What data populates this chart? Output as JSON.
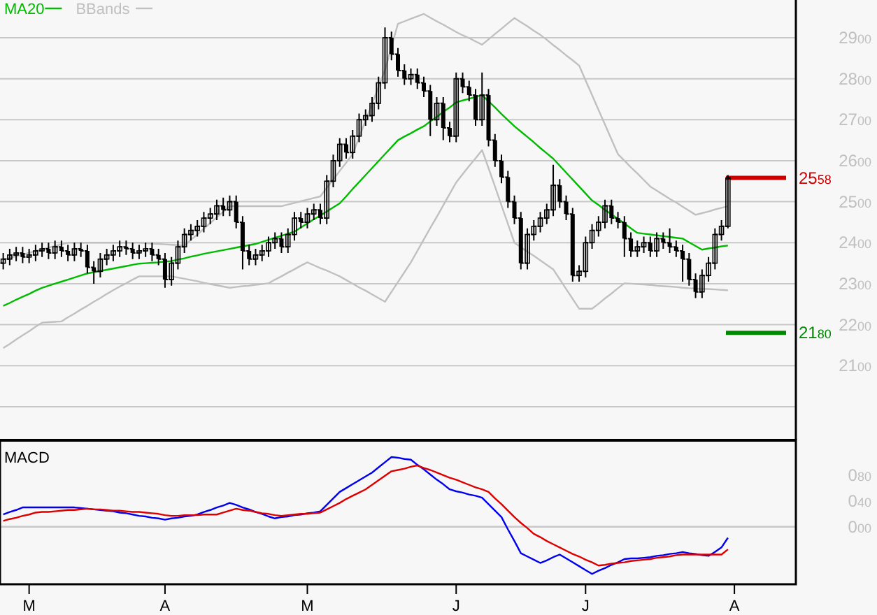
{
  "chart_data": [
    {
      "type": "candlestick",
      "color": "#000000",
      "grid": "y",
      "legend": "top left",
      "tick_labels": "y",
      "ylim": [
        1918,
        2992
      ],
      "yticks": [
        {
          "value": 2000,
          "label": null
        },
        2100,
        2200,
        2300,
        2400,
        2500,
        2600,
        2700,
        2800,
        2900
      ],
      "categories": [
        null,
        null,
        null,
        null,
        null,
        null,
        null,
        null,
        null,
        null,
        null,
        null,
        null,
        null,
        null,
        null,
        null,
        null,
        null,
        null,
        null,
        null,
        null,
        null,
        null,
        null,
        null,
        null,
        null,
        null,
        null,
        null,
        null,
        null,
        null,
        null,
        null,
        null,
        null,
        null,
        null,
        null,
        null,
        null,
        null,
        null,
        null,
        null,
        null,
        null,
        null,
        null,
        null,
        null,
        null,
        null,
        null,
        null,
        null,
        null,
        null,
        null,
        null,
        null,
        null,
        null,
        null,
        null,
        null,
        null,
        null,
        null,
        null,
        null,
        null,
        null,
        null,
        null,
        null,
        null,
        null,
        null,
        null,
        null,
        null,
        null,
        null,
        null,
        null,
        null,
        null,
        null,
        null,
        null,
        null,
        null,
        null,
        null,
        null,
        null,
        null,
        null,
        null,
        null,
        null,
        null,
        null,
        null,
        null,
        null,
        null,
        null,
        null,
        null,
        null,
        null,
        null,
        null,
        null,
        null,
        null,
        null,
        null
      ],
      "ohlc": [
        [
          2350,
          2375,
          2335,
          2360
        ],
        [
          2360,
          2385,
          2345,
          2370
        ],
        [
          2370,
          2390,
          2355,
          2375
        ],
        [
          2375,
          2390,
          2350,
          2365
        ],
        [
          2365,
          2385,
          2350,
          2370
        ],
        [
          2370,
          2395,
          2355,
          2380
        ],
        [
          2380,
          2400,
          2365,
          2385
        ],
        [
          2385,
          2400,
          2360,
          2375
        ],
        [
          2375,
          2405,
          2360,
          2390
        ],
        [
          2390,
          2405,
          2365,
          2380
        ],
        [
          2380,
          2395,
          2355,
          2370
        ],
        [
          2370,
          2400,
          2355,
          2385
        ],
        [
          2385,
          2400,
          2365,
          2380
        ],
        [
          2380,
          2395,
          2325,
          2340
        ],
        [
          2340,
          2355,
          2300,
          2330
        ],
        [
          2330,
          2375,
          2315,
          2360
        ],
        [
          2360,
          2385,
          2345,
          2370
        ],
        [
          2370,
          2395,
          2355,
          2380
        ],
        [
          2380,
          2405,
          2365,
          2390
        ],
        [
          2390,
          2405,
          2370,
          2385
        ],
        [
          2385,
          2400,
          2360,
          2375
        ],
        [
          2375,
          2395,
          2360,
          2380
        ],
        [
          2380,
          2400,
          2365,
          2385
        ],
        [
          2385,
          2400,
          2355,
          2370
        ],
        [
          2370,
          2385,
          2345,
          2360
        ],
        [
          2360,
          2375,
          2290,
          2310
        ],
        [
          2310,
          2365,
          2295,
          2350
        ],
        [
          2350,
          2405,
          2335,
          2390
        ],
        [
          2390,
          2435,
          2375,
          2420
        ],
        [
          2420,
          2445,
          2405,
          2430
        ],
        [
          2430,
          2455,
          2415,
          2440
        ],
        [
          2440,
          2475,
          2425,
          2460
        ],
        [
          2460,
          2485,
          2445,
          2470
        ],
        [
          2470,
          2505,
          2455,
          2490
        ],
        [
          2490,
          2510,
          2465,
          2480
        ],
        [
          2480,
          2515,
          2465,
          2500
        ],
        [
          2500,
          2515,
          2435,
          2450
        ],
        [
          2450,
          2465,
          2335,
          2380
        ],
        [
          2380,
          2395,
          2345,
          2360
        ],
        [
          2360,
          2385,
          2345,
          2370
        ],
        [
          2370,
          2395,
          2355,
          2380
        ],
        [
          2380,
          2415,
          2365,
          2400
        ],
        [
          2400,
          2425,
          2385,
          2410
        ],
        [
          2410,
          2425,
          2375,
          2390
        ],
        [
          2390,
          2435,
          2375,
          2420
        ],
        [
          2420,
          2475,
          2405,
          2460
        ],
        [
          2460,
          2475,
          2435,
          2450
        ],
        [
          2450,
          2485,
          2435,
          2470
        ],
        [
          2470,
          2495,
          2455,
          2480
        ],
        [
          2480,
          2495,
          2445,
          2460
        ],
        [
          2460,
          2565,
          2445,
          2550
        ],
        [
          2550,
          2615,
          2535,
          2600
        ],
        [
          2600,
          2655,
          2585,
          2640
        ],
        [
          2640,
          2655,
          2605,
          2620
        ],
        [
          2620,
          2675,
          2605,
          2660
        ],
        [
          2660,
          2715,
          2645,
          2700
        ],
        [
          2700,
          2725,
          2685,
          2710
        ],
        [
          2710,
          2755,
          2695,
          2740
        ],
        [
          2740,
          2805,
          2725,
          2790
        ],
        [
          2790,
          2925,
          2775,
          2900
        ],
        [
          2900,
          2915,
          2845,
          2860
        ],
        [
          2860,
          2875,
          2805,
          2820
        ],
        [
          2820,
          2835,
          2785,
          2800
        ],
        [
          2800,
          2825,
          2785,
          2810
        ],
        [
          2810,
          2825,
          2775,
          2790
        ],
        [
          2790,
          2805,
          2755,
          2770
        ],
        [
          2770,
          2785,
          2660,
          2700
        ],
        [
          2700,
          2755,
          2685,
          2740
        ],
        [
          2740,
          2755,
          2650,
          2680
        ],
        [
          2680,
          2695,
          2645,
          2660
        ],
        [
          2660,
          2815,
          2645,
          2800
        ],
        [
          2800,
          2815,
          2765,
          2780
        ],
        [
          2780,
          2795,
          2745,
          2760
        ],
        [
          2760,
          2775,
          2685,
          2700
        ],
        [
          2700,
          2815,
          2685,
          2760
        ],
        [
          2760,
          2775,
          2635,
          2650
        ],
        [
          2650,
          2665,
          2585,
          2600
        ],
        [
          2600,
          2615,
          2545,
          2560
        ],
        [
          2560,
          2575,
          2485,
          2500
        ],
        [
          2500,
          2515,
          2445,
          2460
        ],
        [
          2460,
          2475,
          2335,
          2350
        ],
        [
          2350,
          2435,
          2335,
          2420
        ],
        [
          2420,
          2455,
          2405,
          2440
        ],
        [
          2440,
          2475,
          2425,
          2460
        ],
        [
          2460,
          2495,
          2445,
          2480
        ],
        [
          2480,
          2590,
          2465,
          2540
        ],
        [
          2540,
          2555,
          2485,
          2500
        ],
        [
          2500,
          2515,
          2455,
          2470
        ],
        [
          2470,
          2485,
          2305,
          2320
        ],
        [
          2320,
          2345,
          2305,
          2330
        ],
        [
          2330,
          2415,
          2315,
          2400
        ],
        [
          2400,
          2445,
          2385,
          2430
        ],
        [
          2430,
          2465,
          2415,
          2450
        ],
        [
          2450,
          2505,
          2435,
          2490
        ],
        [
          2490,
          2505,
          2445,
          2460
        ],
        [
          2460,
          2475,
          2435,
          2450
        ],
        [
          2450,
          2465,
          2365,
          2410
        ],
        [
          2410,
          2425,
          2365,
          2380
        ],
        [
          2380,
          2405,
          2365,
          2390
        ],
        [
          2390,
          2415,
          2375,
          2400
        ],
        [
          2400,
          2415,
          2365,
          2380
        ],
        [
          2380,
          2425,
          2365,
          2410
        ],
        [
          2410,
          2425,
          2385,
          2400
        ],
        [
          2400,
          2435,
          2375,
          2390
        ],
        [
          2390,
          2405,
          2365,
          2380
        ],
        [
          2380,
          2395,
          2305,
          2360
        ],
        [
          2360,
          2375,
          2295,
          2310
        ],
        [
          2310,
          2325,
          2265,
          2280
        ],
        [
          2280,
          2335,
          2265,
          2320
        ],
        [
          2320,
          2365,
          2305,
          2350
        ],
        [
          2350,
          2435,
          2335,
          2420
        ],
        [
          2420,
          2455,
          2405,
          2440
        ],
        [
          2440,
          2565,
          2435,
          2558
        ],
        null,
        null,
        null,
        null,
        null,
        null,
        null,
        null,
        null,
        null
      ],
      "series": [
        {
          "name": "MA20",
          "type": "line",
          "color": "#00bb00",
          "values": [
            2246,
            2253,
            2261,
            2268,
            2275,
            2283,
            2290,
            2295,
            2300,
            2305,
            2310,
            2315,
            2320,
            2325,
            2328,
            2331,
            2334,
            2337,
            2340,
            2343,
            2346,
            2349,
            2350,
            2351,
            2352,
            2354,
            2355,
            2359,
            2362,
            2366,
            2369,
            2373,
            2376,
            2379,
            2382,
            2385,
            2388,
            2391,
            2394,
            2397,
            2402,
            2407,
            2412,
            2417,
            2422,
            2427,
            2437,
            2447,
            2457,
            2466,
            2476,
            2486,
            2496,
            2513,
            2531,
            2548,
            2565,
            2582,
            2599,
            2616,
            2633,
            2650,
            2659,
            2667,
            2676,
            2684,
            2696,
            2707,
            2719,
            2730,
            2742,
            2747,
            2751,
            2756,
            2760,
            2745,
            2730,
            2714,
            2699,
            2684,
            2671,
            2658,
            2645,
            2631,
            2618,
            2605,
            2588,
            2571,
            2554,
            2537,
            2520,
            2503,
            2492,
            2480,
            2469,
            2458,
            2447,
            2435,
            2424,
            2422,
            2420,
            2418,
            2416,
            2414,
            2412,
            2410,
            2401,
            2392,
            2383,
            2386,
            2388,
            2391,
            2393,
            null,
            null,
            null,
            null,
            null,
            null,
            null,
            null,
            null,
            null
          ]
        },
        {
          "name": "BBands",
          "type": "line",
          "color": "#c0c0c0",
          "values": [
            2359,
            2363,
            2367,
            2371,
            2375,
            2380,
            2384,
            2388,
            2392,
            2396,
            2400,
            2400,
            2400,
            2400,
            2400,
            2400,
            2400,
            2400,
            2400,
            2400,
            2400,
            2400,
            2399,
            2398,
            2397,
            2396,
            2395,
            2394,
            2393,
            2407,
            2420,
            2434,
            2448,
            2462,
            2475,
            2489,
            2489,
            2489,
            2489,
            2489,
            2489,
            2489,
            2489,
            2489,
            2493,
            2497,
            2501,
            2505,
            2509,
            2513,
            2534,
            2554,
            2575,
            2595,
            2616,
            2657,
            2698,
            2739,
            2780,
            2821,
            2878,
            2934,
            2940,
            2946,
            2952,
            2958,
            2949,
            2940,
            2932,
            2923,
            2914,
            2906,
            2899,
            2891,
            2883,
            2896,
            2909,
            2922,
            2935,
            2948,
            2938,
            2928,
            2917,
            2907,
            2895,
            2882,
            2870,
            2857,
            2845,
            2832,
            2796,
            2760,
            2724,
            2688,
            2652,
            2616,
            2600,
            2584,
            2569,
            2553,
            2537,
            2527,
            2517,
            2507,
            2498,
            2488,
            2478,
            2468,
            2472,
            2476,
            2481,
            2485,
            2489,
            null,
            null,
            null,
            null,
            null,
            null,
            null,
            null,
            null,
            null
          ]
        },
        {
          "type": "line",
          "color": "#c0c0c0",
          "values": [
            2143,
            2153,
            2164,
            2174,
            2184,
            2195,
            2205,
            2206,
            2207,
            2208,
            2218,
            2227,
            2237,
            2246,
            2256,
            2265,
            2275,
            2284,
            2293,
            2301,
            2310,
            2318,
            2318,
            2318,
            2318,
            2318,
            2318,
            2315,
            2312,
            2309,
            2306,
            2302,
            2299,
            2296,
            2293,
            2290,
            2292,
            2294,
            2295,
            2297,
            2299,
            2301,
            2310,
            2318,
            2327,
            2335,
            2344,
            2352,
            2345,
            2338,
            2332,
            2325,
            2318,
            2309,
            2300,
            2291,
            2283,
            2274,
            2265,
            2256,
            2280,
            2304,
            2328,
            2352,
            2380,
            2408,
            2436,
            2463,
            2491,
            2519,
            2547,
            2567,
            2587,
            2606,
            2626,
            2582,
            2537,
            2491,
            2446,
            2400,
            2389,
            2378,
            2368,
            2357,
            2346,
            2335,
            2311,
            2287,
            2263,
            2239,
            2239,
            2239,
            2251,
            2264,
            2276,
            2289,
            2301,
            2300,
            2299,
            2298,
            2297,
            2295,
            2294,
            2293,
            2292,
            2290,
            2289,
            2288,
            2287,
            2287,
            2286,
            2285,
            2284,
            null,
            null,
            null,
            null,
            null,
            null,
            null,
            null,
            null,
            null
          ]
        }
      ],
      "ref_lines": [
        {
          "axis": "y",
          "value": 2558,
          "label": "2558",
          "color": "#cc0000"
        },
        {
          "axis": "y",
          "value": 2180,
          "label": "2180",
          "color": "#008800"
        }
      ]
    },
    {
      "type": "line",
      "title": "MACD",
      "ylim": [
        -89,
        134
      ],
      "categories": [
        null,
        null,
        null,
        null,
        "M",
        null,
        null,
        null,
        null,
        null,
        null,
        null,
        null,
        null,
        null,
        null,
        null,
        null,
        null,
        null,
        null,
        null,
        null,
        null,
        null,
        "A",
        null,
        null,
        null,
        null,
        null,
        null,
        null,
        null,
        null,
        null,
        null,
        null,
        null,
        null,
        null,
        null,
        null,
        null,
        null,
        null,
        null,
        "M",
        null,
        null,
        null,
        null,
        null,
        null,
        null,
        null,
        null,
        null,
        null,
        null,
        null,
        null,
        null,
        null,
        null,
        null,
        null,
        null,
        null,
        null,
        "J",
        null,
        null,
        null,
        null,
        null,
        null,
        null,
        null,
        null,
        null,
        null,
        null,
        null,
        null,
        null,
        null,
        null,
        null,
        null,
        "J",
        null,
        null,
        null,
        null,
        null,
        null,
        null,
        null,
        null,
        null,
        null,
        null,
        null,
        null,
        null,
        null,
        null,
        null,
        null,
        null,
        null,
        null,
        "A",
        null,
        null,
        null,
        null,
        null,
        null,
        null,
        null,
        null
      ],
      "yticks": [
        {
          "value": 0,
          "label": "000"
        },
        {
          "value": 40,
          "label": "040"
        },
        {
          "value": 80,
          "label": "080"
        }
      ],
      "series": [
        {
          "color": "#0000ee",
          "values": [
            19,
            23,
            26,
            30,
            30,
            30,
            30,
            30,
            30,
            30,
            30,
            30,
            29,
            28,
            27,
            26,
            25,
            24,
            22,
            21,
            19,
            17,
            16,
            14,
            13,
            11,
            13,
            14,
            16,
            17,
            19,
            23,
            26,
            30,
            33,
            37,
            34,
            30,
            27,
            23,
            20,
            16,
            13,
            15,
            16,
            18,
            19,
            21,
            22,
            24,
            34,
            44,
            54,
            60,
            66,
            72,
            78,
            84,
            92,
            100,
            108,
            107,
            105,
            104,
            96,
            89,
            81,
            73,
            66,
            58,
            55,
            53,
            50,
            48,
            45,
            35,
            25,
            15,
            -4,
            -22,
            -41,
            -46,
            -51,
            -56,
            -52,
            -47,
            -43,
            -49,
            -55,
            -61,
            -67,
            -73,
            -68,
            -64,
            -59,
            -55,
            -50,
            -49,
            -49,
            -48,
            -47,
            -45,
            -44,
            -42,
            -41,
            -39,
            -41,
            -42,
            -44,
            -45,
            -39,
            -32,
            -17,
            null,
            null,
            null,
            null,
            null,
            null,
            null,
            null,
            null,
            null
          ]
        },
        {
          "color": "#dd0000",
          "values": [
            9,
            12,
            14,
            17,
            19,
            22,
            23,
            23,
            24,
            25,
            26,
            26,
            27,
            28,
            27,
            27,
            26,
            25,
            25,
            24,
            23,
            23,
            22,
            21,
            20,
            18,
            17,
            17,
            18,
            18,
            18,
            19,
            19,
            19,
            22,
            25,
            28,
            26,
            25,
            23,
            21,
            20,
            18,
            17,
            18,
            19,
            20,
            20,
            21,
            22,
            27,
            32,
            37,
            43,
            48,
            53,
            58,
            65,
            72,
            79,
            86,
            88,
            90,
            93,
            95,
            91,
            88,
            84,
            80,
            76,
            73,
            69,
            65,
            61,
            58,
            54,
            44,
            35,
            25,
            15,
            6,
            -2,
            -11,
            -16,
            -22,
            -27,
            -32,
            -37,
            -42,
            -46,
            -51,
            -55,
            -60,
            -59,
            -57,
            -56,
            -55,
            -53,
            -52,
            -51,
            -50,
            -48,
            -47,
            -46,
            -44,
            -43,
            -43,
            -43,
            -43,
            -43,
            -43,
            -43,
            -35,
            null,
            null,
            null,
            null,
            null,
            null,
            null,
            null,
            null,
            null
          ]
        }
      ],
      "ref_lines": [
        {
          "axis": "y",
          "value": 0,
          "color": "#c8c8c8"
        }
      ]
    }
  ]
}
